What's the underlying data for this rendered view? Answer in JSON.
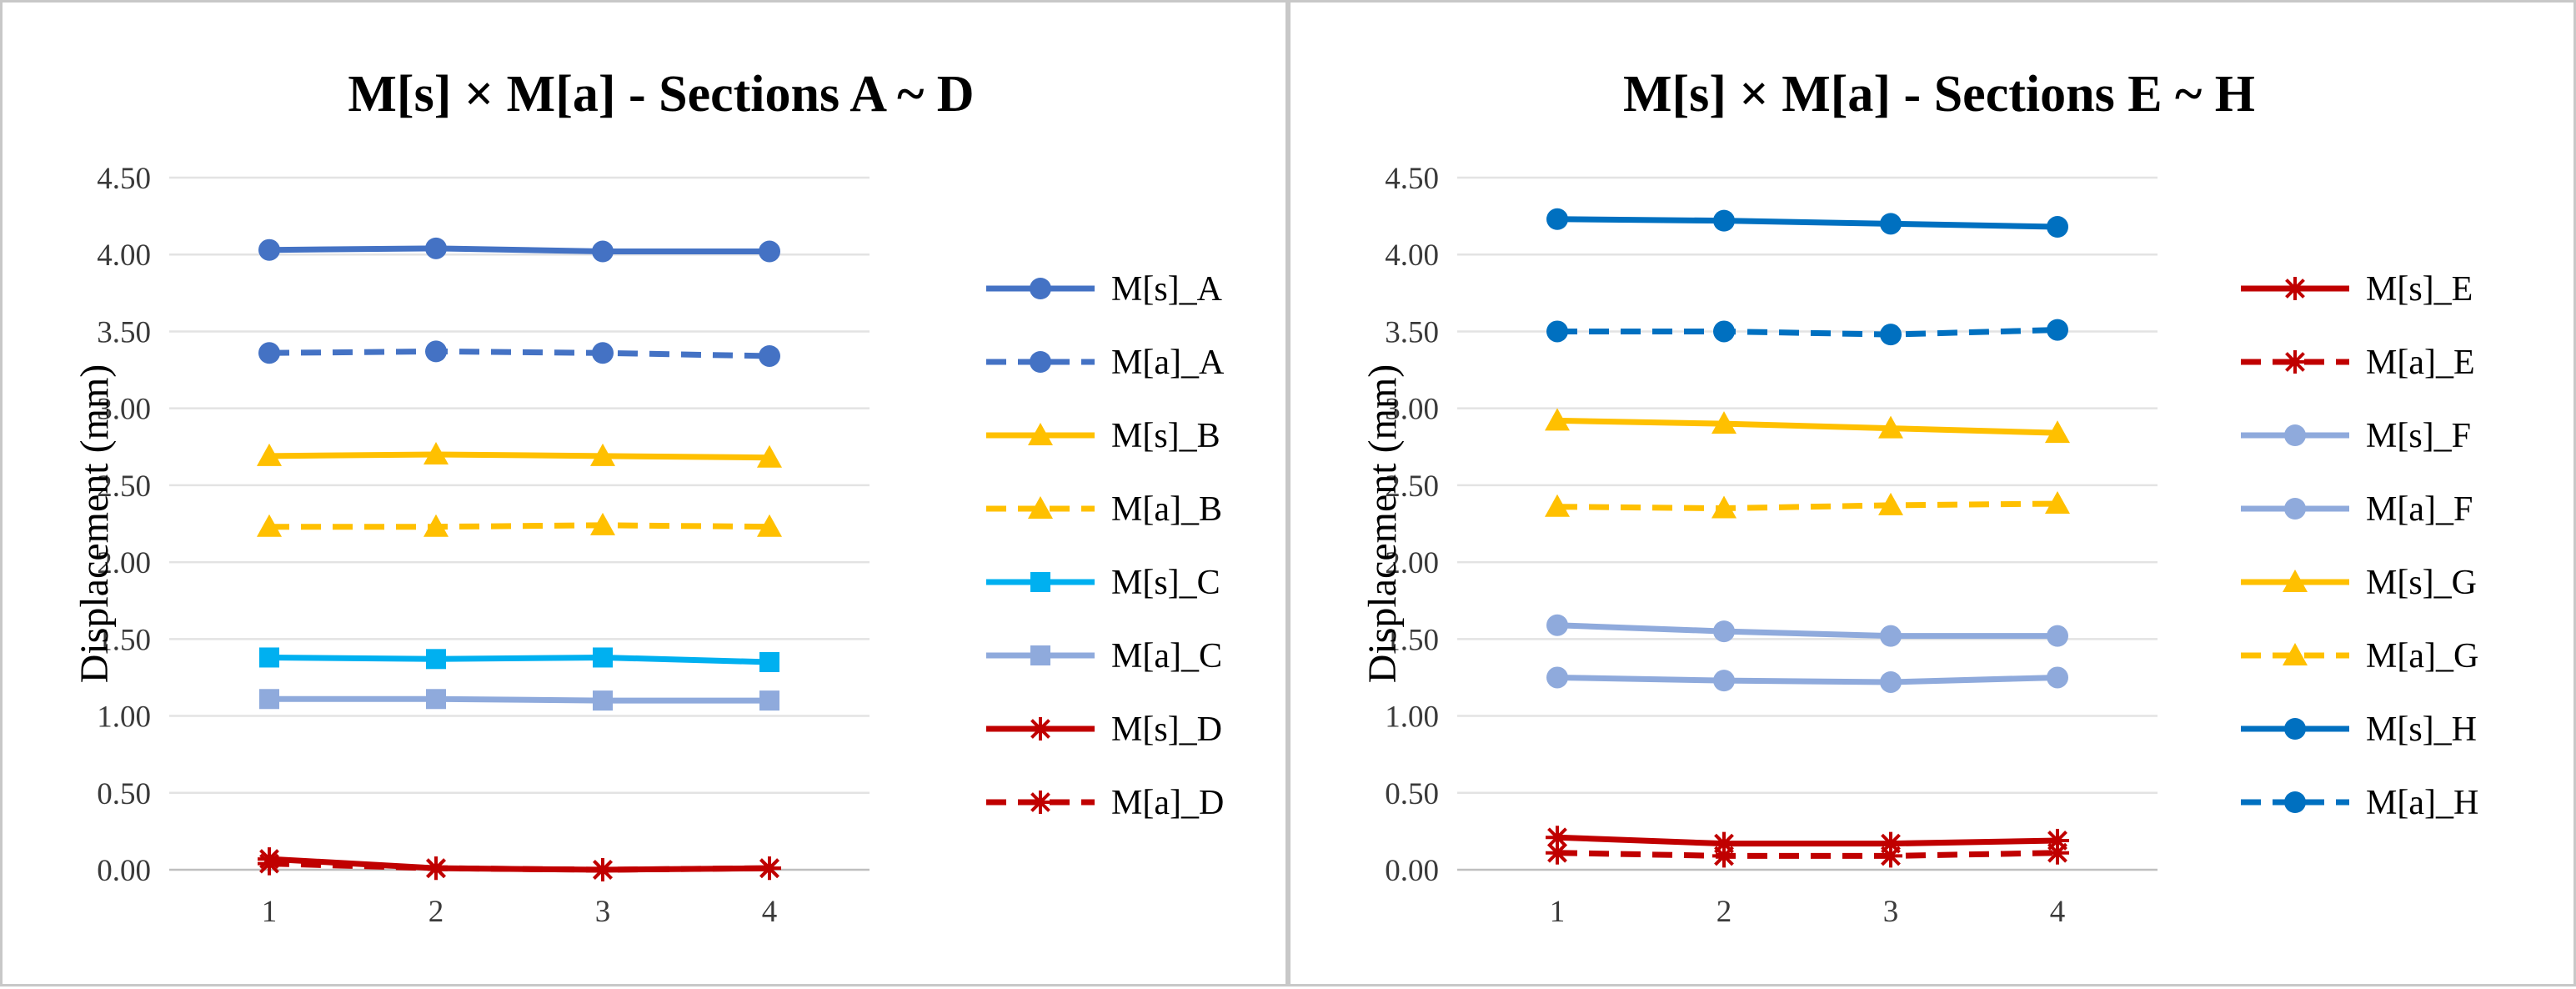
{
  "chart_data": [
    {
      "type": "line",
      "title": "M[s] × M[a] - Sections A ~ D",
      "xlabel": "",
      "ylabel": "Displacement (mm)",
      "x": [
        1,
        2,
        3,
        4
      ],
      "x_tick_labels": [
        "1",
        "2",
        "3",
        "4"
      ],
      "ylim": [
        0,
        4.5
      ],
      "y_tick_labels": [
        "0.00",
        "0.50",
        "1.00",
        "1.50",
        "2.00",
        "2.50",
        "3.00",
        "3.50",
        "4.00",
        "4.50"
      ],
      "grid": true,
      "legend_position": "right",
      "series": [
        {
          "name": "M[s]_A",
          "values": [
            4.03,
            4.04,
            4.02,
            4.02
          ],
          "color": "#4472C4",
          "dash": "solid",
          "marker": "circle"
        },
        {
          "name": "M[a]_A",
          "values": [
            3.36,
            3.37,
            3.36,
            3.34
          ],
          "color": "#4472C4",
          "dash": "dashed",
          "marker": "circle"
        },
        {
          "name": "M[s]_B",
          "values": [
            2.69,
            2.7,
            2.69,
            2.68
          ],
          "color": "#FFC000",
          "dash": "solid",
          "marker": "triangle"
        },
        {
          "name": "M[a]_B",
          "values": [
            2.23,
            2.23,
            2.24,
            2.23
          ],
          "color": "#FFC000",
          "dash": "dashed",
          "marker": "triangle"
        },
        {
          "name": "M[s]_C",
          "values": [
            1.38,
            1.37,
            1.38,
            1.35
          ],
          "color": "#00B0F0",
          "dash": "solid",
          "marker": "square"
        },
        {
          "name": "M[a]_C",
          "values": [
            1.11,
            1.11,
            1.1,
            1.1
          ],
          "color": "#8FAADC",
          "dash": "solid",
          "marker": "square"
        },
        {
          "name": "M[s]_D",
          "values": [
            0.07,
            0.01,
            0.0,
            0.01
          ],
          "color": "#C00000",
          "dash": "solid",
          "marker": "star"
        },
        {
          "name": "M[a]_D",
          "values": [
            0.04,
            0.01,
            0.0,
            0.01
          ],
          "color": "#C00000",
          "dash": "dashed",
          "marker": "star"
        }
      ]
    },
    {
      "type": "line",
      "title": "M[s] × M[a] - Sections E ~ H",
      "xlabel": "",
      "ylabel": "Displacement (mm)",
      "x": [
        1,
        2,
        3,
        4
      ],
      "x_tick_labels": [
        "1",
        "2",
        "3",
        "4"
      ],
      "ylim": [
        0,
        4.5
      ],
      "y_tick_labels": [
        "0.00",
        "0.50",
        "1.00",
        "1.50",
        "2.00",
        "2.50",
        "3.00",
        "3.50",
        "4.00",
        "4.50"
      ],
      "grid": true,
      "legend_position": "right",
      "series": [
        {
          "name": "M[s]_E",
          "values": [
            0.21,
            0.17,
            0.17,
            0.19
          ],
          "color": "#C00000",
          "dash": "solid",
          "marker": "star"
        },
        {
          "name": "M[a]_E",
          "values": [
            0.11,
            0.09,
            0.09,
            0.11
          ],
          "color": "#C00000",
          "dash": "dashed",
          "marker": "star"
        },
        {
          "name": "M[s]_F",
          "values": [
            1.59,
            1.55,
            1.52,
            1.52
          ],
          "color": "#8FAADC",
          "dash": "solid",
          "marker": "circle"
        },
        {
          "name": "M[a]_F",
          "values": [
            1.25,
            1.23,
            1.22,
            1.25
          ],
          "color": "#8FAADC",
          "dash": "solid",
          "marker": "circle"
        },
        {
          "name": "M[s]_G",
          "values": [
            2.92,
            2.9,
            2.87,
            2.84
          ],
          "color": "#FFC000",
          "dash": "solid",
          "marker": "triangle"
        },
        {
          "name": "M[a]_G",
          "values": [
            2.36,
            2.35,
            2.37,
            2.38
          ],
          "color": "#FFC000",
          "dash": "dashed",
          "marker": "triangle"
        },
        {
          "name": "M[s]_H",
          "values": [
            4.23,
            4.22,
            4.2,
            4.18
          ],
          "color": "#0070C0",
          "dash": "solid",
          "marker": "circle"
        },
        {
          "name": "M[a]_H",
          "values": [
            3.5,
            3.5,
            3.48,
            3.51
          ],
          "color": "#0070C0",
          "dash": "dashed",
          "marker": "circle"
        }
      ]
    }
  ]
}
